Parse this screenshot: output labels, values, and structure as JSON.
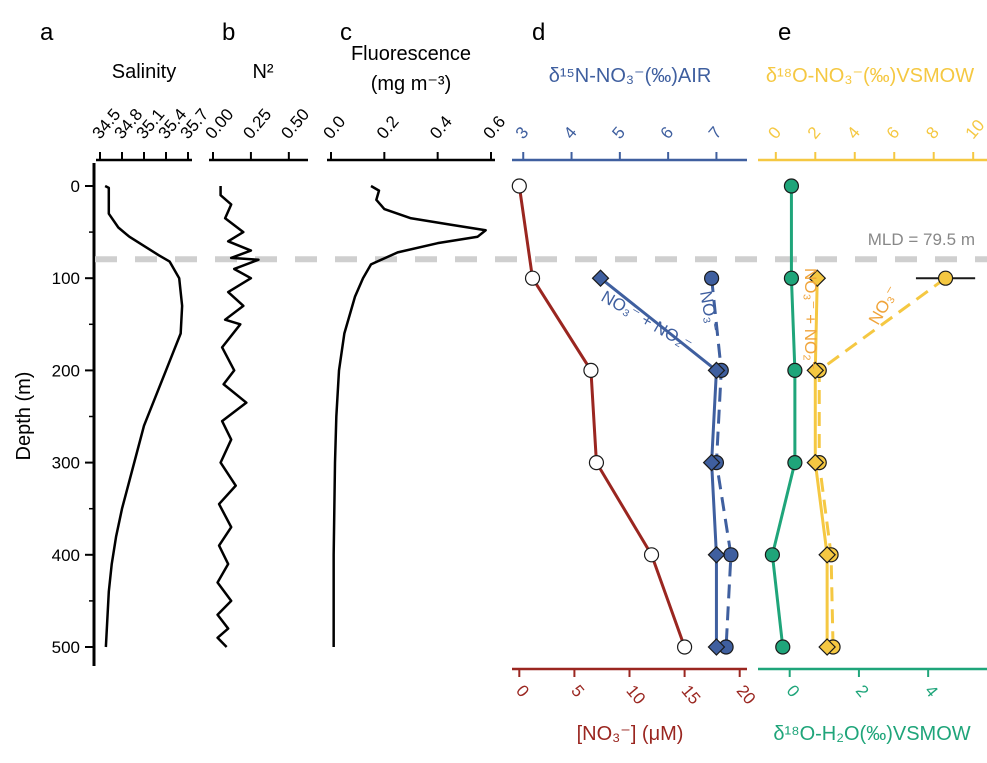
{
  "figure": {
    "ylabel": "Depth (m)",
    "depth_ticks": [
      "0",
      "100",
      "200",
      "300",
      "400",
      "500"
    ],
    "mld_label": "MLD = 79.5 m"
  },
  "colors": {
    "black": "#000000",
    "blue": "#3f5f9f",
    "red": "#9a2620",
    "green": "#1fa57a",
    "yellow": "#f5c842",
    "orange": "#f0a43a",
    "mld": "#cfcfcf",
    "mld_text": "#888888"
  },
  "chart_data": [
    {
      "panel": "a",
      "type": "line",
      "title": "Salinity",
      "x_ticks": [
        "34.5",
        "34.8",
        "35.1",
        "35.4",
        "35.7"
      ],
      "xlim": [
        34.5,
        35.7
      ],
      "ylim": [
        0,
        500
      ],
      "series": [
        {
          "x": [
            34.57,
            34.62,
            34.62,
            34.75,
            34.9,
            35.1,
            35.3,
            35.45,
            35.58,
            35.62,
            35.6,
            35.5,
            35.4,
            35.25,
            35.1,
            35.0,
            34.9,
            34.8,
            34.72,
            34.66,
            34.62,
            34.6,
            34.58
          ],
          "y": [
            0,
            2,
            30,
            45,
            55,
            65,
            75,
            82,
            100,
            130,
            160,
            180,
            200,
            230,
            260,
            290,
            320,
            350,
            380,
            410,
            440,
            470,
            500
          ]
        }
      ]
    },
    {
      "panel": "b",
      "type": "line",
      "title": "N²",
      "x_ticks": [
        "0.00",
        "0.25",
        "0.50"
      ],
      "xlim": [
        0,
        0.6
      ],
      "ylim": [
        0,
        500
      ],
      "series": [
        {
          "x": [
            0.05,
            0.05,
            0.12,
            0.08,
            0.2,
            0.1,
            0.25,
            0.12,
            0.3,
            0.14,
            0.25,
            0.1,
            0.2,
            0.08,
            0.18,
            0.06,
            0.14,
            0.07,
            0.22,
            0.06,
            0.12,
            0.05,
            0.15,
            0.04,
            0.12,
            0.04,
            0.1,
            0.03,
            0.12,
            0.03,
            0.1,
            0.03,
            0.09
          ],
          "y": [
            0,
            10,
            20,
            35,
            50,
            60,
            70,
            78,
            80,
            90,
            100,
            115,
            130,
            145,
            150,
            175,
            200,
            215,
            235,
            255,
            275,
            300,
            325,
            345,
            370,
            390,
            410,
            430,
            450,
            465,
            480,
            490,
            500
          ]
        }
      ]
    },
    {
      "panel": "c",
      "type": "line",
      "title": "Fluorescence",
      "subtitle": "(mg m⁻³)",
      "x_ticks": [
        "0.0",
        "0.2",
        "0.4",
        "0.6"
      ],
      "xlim": [
        0,
        0.6
      ],
      "ylim": [
        0,
        500
      ],
      "series": [
        {
          "x": [
            0.15,
            0.18,
            0.17,
            0.2,
            0.3,
            0.45,
            0.58,
            0.55,
            0.4,
            0.25,
            0.15,
            0.12,
            0.09,
            0.05,
            0.03,
            0.02,
            0.015,
            0.01,
            0.01
          ],
          "y": [
            0,
            5,
            15,
            25,
            35,
            42,
            48,
            55,
            62,
            72,
            85,
            100,
            120,
            160,
            200,
            250,
            300,
            400,
            500
          ]
        }
      ]
    },
    {
      "panel": "d",
      "type": "line",
      "top_axis": {
        "label": "δ¹⁵N-NO₃⁻(‰)AIR",
        "ticks": [
          "3",
          "4",
          "5",
          "6",
          "7"
        ],
        "lim": [
          2.85,
          7.55
        ]
      },
      "bottom_axis": {
        "label": "[NO₃⁻] (μM)",
        "ticks": [
          "0",
          "5",
          "10",
          "15",
          "20"
        ],
        "lim": [
          -0.3,
          20.3
        ]
      },
      "ylim": [
        0,
        500
      ],
      "series": [
        {
          "name": "NO₃⁻ + NO₂⁻",
          "axis": "top",
          "marker": "diamond",
          "x": [
            4.6,
            7.0,
            6.9,
            7.0,
            7.0
          ],
          "y": [
            100,
            200,
            300,
            400,
            500
          ]
        },
        {
          "name": "NO₃⁻",
          "axis": "top",
          "marker": "circle",
          "x": [
            6.9,
            7.1,
            7.0,
            7.3,
            7.2
          ],
          "y": [
            100,
            200,
            300,
            400,
            500
          ]
        },
        {
          "name": "[NO₃⁻]",
          "axis": "bottom",
          "marker": "circle-open",
          "x": [
            0,
            1.2,
            6.5,
            7.0,
            12.0,
            15.0
          ],
          "y": [
            0,
            100,
            200,
            300,
            400,
            500
          ]
        }
      ]
    },
    {
      "panel": "e",
      "type": "line",
      "top_axis": {
        "label": "δ¹⁸O-NO₃⁻(‰)VSMOW",
        "ticks": [
          "0",
          "2",
          "4",
          "6",
          "8",
          "10"
        ],
        "lim": [
          -0.7,
          10.7
        ]
      },
      "bottom_axis": {
        "label": "δ¹⁸O-H₂O(‰)VSMOW",
        "ticks": [
          "0",
          "2",
          "4"
        ],
        "lim": [
          -0.8,
          5.7
        ]
      },
      "ylim": [
        0,
        500
      ],
      "series": [
        {
          "name": "NO₃⁻ + NO₂⁻",
          "axis": "top",
          "marker": "diamond",
          "x": [
            2.1,
            2.0,
            2.0,
            2.6,
            2.6
          ],
          "y": [
            100,
            200,
            300,
            400,
            500
          ]
        },
        {
          "name": "NO₃⁻",
          "axis": "top",
          "marker": "circle",
          "x": [
            8.6,
            2.2,
            2.2,
            2.8,
            2.9
          ],
          "y": [
            100,
            200,
            300,
            400,
            500
          ],
          "xerr_first": 1.5
        },
        {
          "name": "δ¹⁸O-H₂O",
          "axis": "bottom",
          "marker": "circle",
          "x": [
            0.05,
            0.05,
            0.15,
            0.15,
            -0.5,
            -0.2
          ],
          "y": [
            0,
            100,
            200,
            300,
            400,
            500
          ]
        }
      ]
    }
  ]
}
